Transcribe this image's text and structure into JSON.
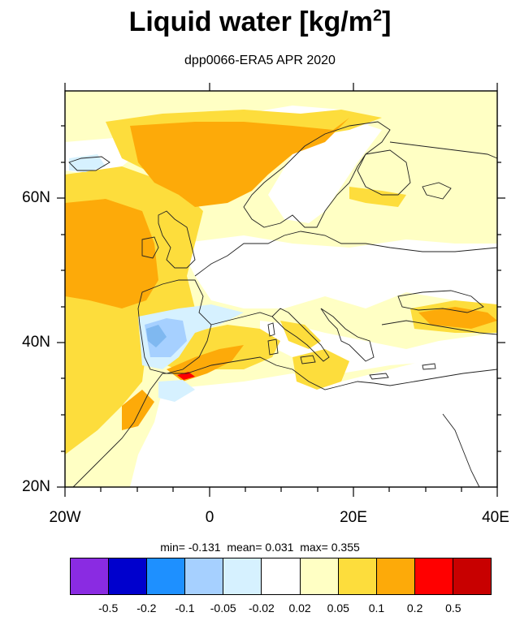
{
  "title_main": "Liquid water  [kg/m",
  "title_sup": "2",
  "title_end": "]",
  "subtitle": "dpp0066-ERA5 APR 2020",
  "lat_labels": [
    "60N",
    "40N",
    "20N"
  ],
  "lon_labels": [
    "20W",
    "0",
    "20E",
    "40E"
  ],
  "stats": {
    "min_label": "min=",
    "min_value": "-0.131",
    "mean_label": "mean=",
    "mean_value": "0.031",
    "max_label": "max=",
    "max_value": "0.355"
  },
  "colorbar": {
    "colors": [
      "#8a2be2",
      "#0000cd",
      "#1e90ff",
      "#a6d0ff",
      "#d6f1ff",
      "#ffffff",
      "#ffffc4",
      "#fddd3c",
      "#fdaa09",
      "#ff0000",
      "#c80000"
    ],
    "labels": [
      "-0.5",
      "-0.2",
      "-0.1",
      "-0.05",
      "-0.02",
      "0.02",
      "0.05",
      "0.1",
      "0.2",
      "0.5"
    ]
  },
  "map_colors": {
    "white": "#ffffff",
    "pale_yellow": "#ffffc4",
    "yellow": "#fddd3c",
    "orange": "#fdaa09",
    "red": "#ff0000",
    "light_blue": "#d6f1ff",
    "mid_blue": "#a6d0ff",
    "blue": "#7fb8f0"
  }
}
